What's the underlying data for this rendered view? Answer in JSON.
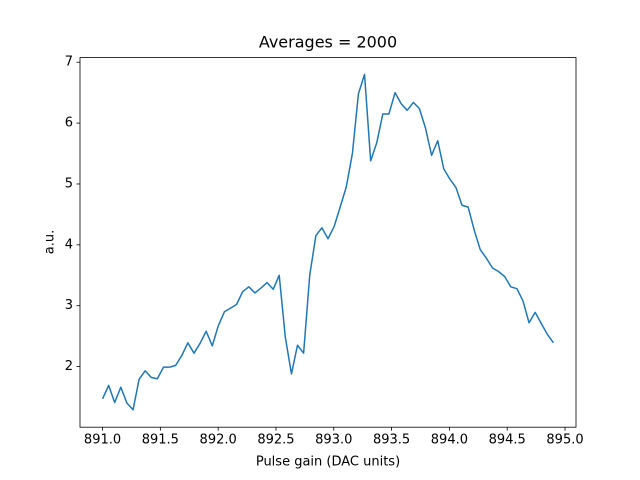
{
  "chart_data": {
    "type": "line",
    "title": "Averages = 2000",
    "x_label": "Pulse gain (DAC units)",
    "y_label": "a.u.",
    "x": [
      891.0,
      891.053,
      891.105,
      891.158,
      891.211,
      891.264,
      891.316,
      891.369,
      891.422,
      891.474,
      891.527,
      891.58,
      891.632,
      891.685,
      891.738,
      891.791,
      891.843,
      891.896,
      891.949,
      892.001,
      892.054,
      892.107,
      892.159,
      892.212,
      892.265,
      892.318,
      892.37,
      892.423,
      892.476,
      892.528,
      892.581,
      892.634,
      892.686,
      892.739,
      892.792,
      892.845,
      892.897,
      892.95,
      893.003,
      893.055,
      893.108,
      893.161,
      893.213,
      893.266,
      893.319,
      893.372,
      893.424,
      893.477,
      893.53,
      893.582,
      893.635,
      893.688,
      893.74,
      893.793,
      893.846,
      893.899,
      893.951,
      894.004,
      894.057,
      894.109,
      894.162,
      894.215,
      894.267,
      894.32,
      894.373,
      894.426,
      894.478,
      894.531,
      894.584,
      894.636,
      894.689,
      894.742,
      894.794,
      894.847,
      894.9
    ],
    "values": [
      1.47,
      1.69,
      1.41,
      1.66,
      1.4,
      1.29,
      1.79,
      1.93,
      1.82,
      1.8,
      1.99,
      1.99,
      2.02,
      2.18,
      2.39,
      2.22,
      2.38,
      2.58,
      2.34,
      2.67,
      2.9,
      2.96,
      3.02,
      3.23,
      3.31,
      3.21,
      3.29,
      3.38,
      3.27,
      3.5,
      2.48,
      1.88,
      2.35,
      2.22,
      3.5,
      4.15,
      4.28,
      4.1,
      4.3,
      4.62,
      4.95,
      5.5,
      6.48,
      6.8,
      5.38,
      5.68,
      6.15,
      6.15,
      6.5,
      6.32,
      6.21,
      6.34,
      6.24,
      5.92,
      5.47,
      5.71,
      5.25,
      5.08,
      4.94,
      4.65,
      4.62,
      4.24,
      3.92,
      3.78,
      3.62,
      3.56,
      3.48,
      3.31,
      3.28,
      3.08,
      2.72,
      2.89,
      2.71,
      2.53,
      2.39
    ],
    "color": "#1f77b4",
    "xlim": [
      890.805,
      895.095
    ],
    "xticks": [
      {
        "value": 891.0,
        "label": "891.0"
      },
      {
        "value": 891.5,
        "label": "891.5"
      },
      {
        "value": 892.0,
        "label": "892.0"
      },
      {
        "value": 892.5,
        "label": "892.5"
      },
      {
        "value": 893.0,
        "label": "893.0"
      },
      {
        "value": 893.5,
        "label": "893.5"
      },
      {
        "value": 894.0,
        "label": "894.0"
      },
      {
        "value": 894.5,
        "label": "894.5"
      },
      {
        "value": 895.0,
        "label": "895.0"
      }
    ],
    "ylim": [
      1.004,
      7.076
    ],
    "yticks": [
      2,
      3,
      4,
      5,
      6,
      7
    ]
  }
}
